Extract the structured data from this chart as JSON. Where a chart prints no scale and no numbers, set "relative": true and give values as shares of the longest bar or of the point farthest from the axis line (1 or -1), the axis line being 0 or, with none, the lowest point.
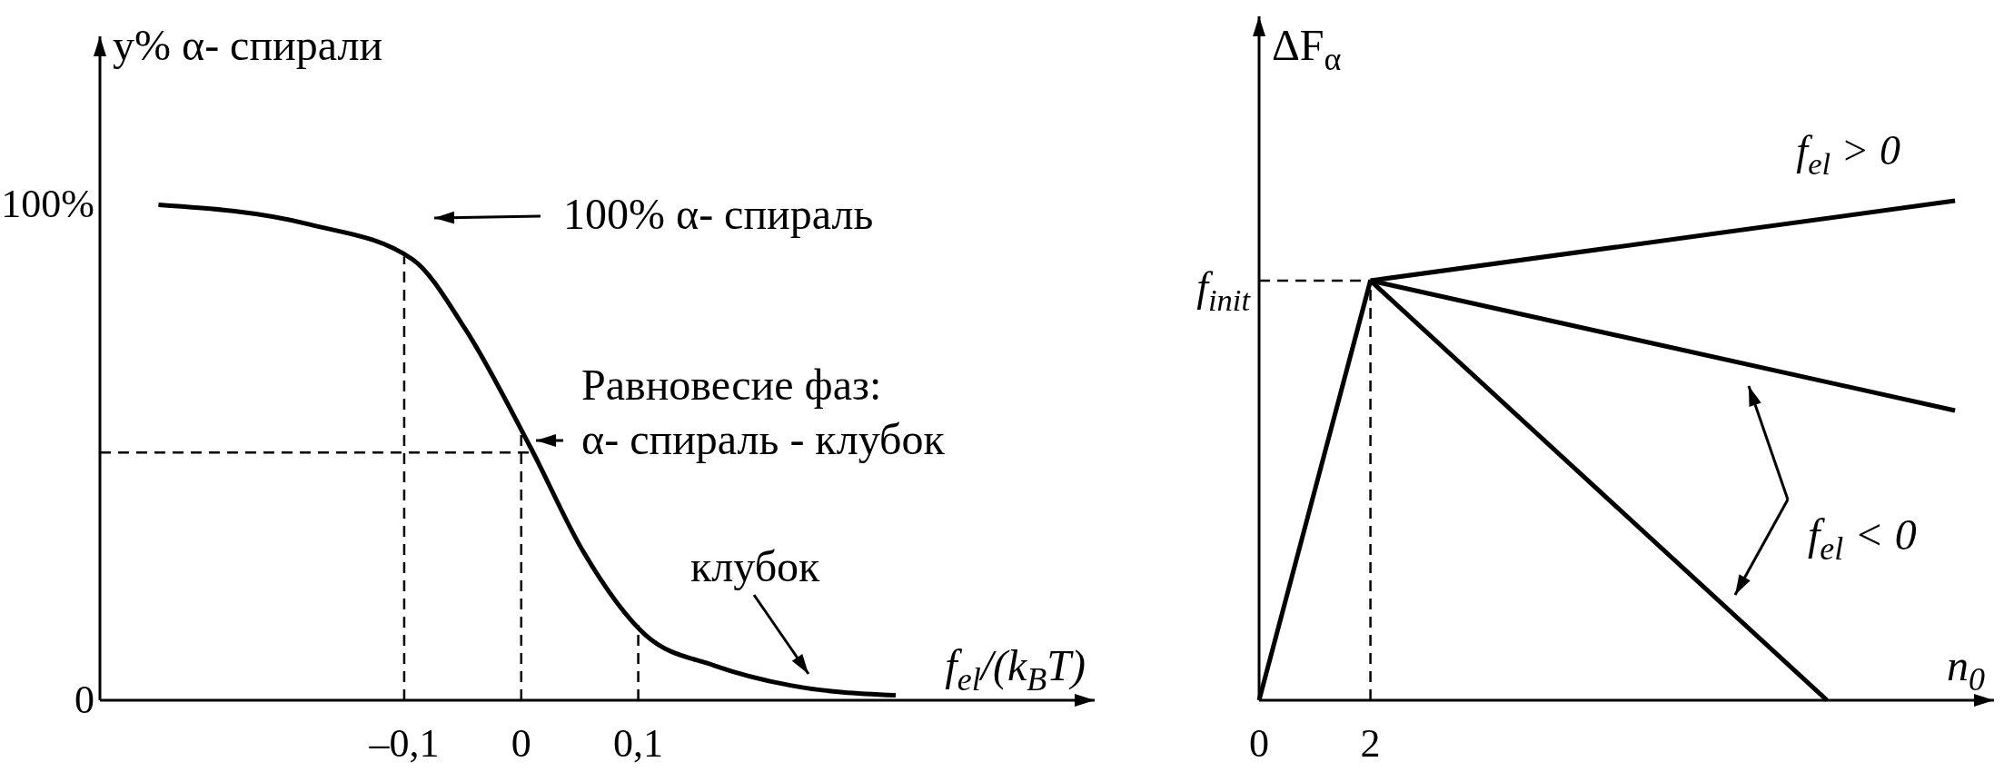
{
  "chart_data": [
    {
      "type": "line",
      "xlabel": "f$_{el}$/(k$_{B}$T)",
      "ylabel": "y%  α- спирали",
      "xlim": [
        -0.36,
        0.49
      ],
      "ylim": [
        0,
        134
      ],
      "xticks": [
        {
          "value": -0.1,
          "label": "–0,1"
        },
        {
          "value": 0,
          "label": "0"
        },
        {
          "value": 0.1,
          "label": "0,1"
        }
      ],
      "yticks": [
        {
          "value": 0,
          "label": "0"
        },
        {
          "value": 100,
          "label": "100%"
        }
      ],
      "x": [
        -0.31,
        -0.18,
        -0.093,
        -0.048,
        0.008,
        0.053,
        0.107,
        0.165,
        0.23,
        0.32
      ],
      "series": [
        {
          "color": "#000000",
          "values": [
            100,
            96,
            89,
            75,
            51,
            30,
            13,
            7,
            3,
            1
          ]
        }
      ],
      "ref_lines": [
        {
          "axis": "x",
          "value": -0.1,
          "line_style": "dashed"
        },
        {
          "axis": "x",
          "value": 0,
          "line_style": "dashed"
        },
        {
          "axis": "x",
          "value": 0.1,
          "line_style": "dashed"
        },
        {
          "axis": "y",
          "value": 50,
          "line_style": "dashed"
        }
      ],
      "annotations": [
        "100%  α- спираль",
        "Равновесие фаз:\nα- спираль - клубок",
        "клубок"
      ]
    },
    {
      "type": "line",
      "relative": true,
      "xlabel": "n$_{0}$",
      "ylabel": "ΔF$_{α}$",
      "xlim": [
        0,
        13.2
      ],
      "xticks": [
        0,
        2
      ],
      "series": [
        {
          "color": "#000000",
          "x": [
            0,
            2
          ],
          "values": [
            0,
            0.84
          ]
        },
        {
          "name": "f$_{el}$ > 0",
          "color": "#000000",
          "x": [
            2,
            12.5
          ],
          "values": [
            0.84,
            1
          ]
        },
        {
          "color": "#000000",
          "x": [
            2,
            12.5
          ],
          "values": [
            0.84,
            0.58
          ]
        },
        {
          "color": "#000000",
          "x": [
            2,
            10.2
          ],
          "values": [
            0.84,
            0
          ]
        }
      ],
      "ref_lines": [
        {
          "axis": "x",
          "value": 2,
          "line_style": "dashed"
        },
        {
          "axis": "y",
          "value": 0.84,
          "label": "f$_{init}$",
          "line_style": "dashed"
        }
      ],
      "annotations": [
        "f$_{el}$ < 0"
      ]
    }
  ]
}
